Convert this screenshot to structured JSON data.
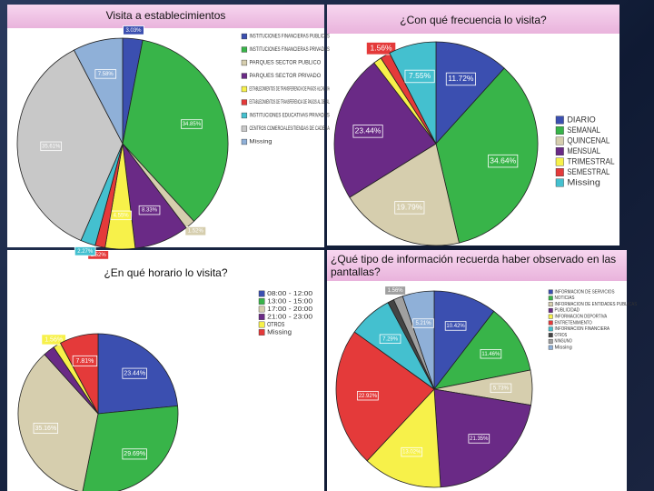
{
  "chart_data": [
    {
      "type": "pie",
      "title": "Visita a establecimientos",
      "categories": [
        "INSTITUCIONES FINANCIERAS PUBLICAS",
        "INSTITUCIONES FINANCIERAS PRIVADAS",
        "PARQUES SECTOR PUBLICO",
        "PARQUES SECTOR PRIVADO",
        "ESTABLECIMIENTOS DE TRANSFERENCIA DE PAGOS ALCALDIA",
        "ESTABLECIMIENTOS DE TRANSFERENCIA DE PAGOS AL DETAL",
        "INSTITUCIONES EDUCATIVAS PRIVADAS",
        "CENTROS COMERCIALES/TIENDAS DE CADENA",
        "Missing"
      ],
      "values": [
        3.03,
        34.85,
        1.52,
        8.33,
        4.55,
        1.52,
        2.27,
        35.61,
        7.58
      ],
      "value_labels": [
        "3.03%",
        "34.85%",
        "1.52%",
        "8.33%",
        "4.55%",
        "1.52%",
        "2.27%",
        "35.61%",
        "7.58%"
      ],
      "colors": [
        "#3b4fb0",
        "#38b449",
        "#d6ceae",
        "#6a2a86",
        "#f7f14a",
        "#e43a3a",
        "#44c0cf",
        "#c8c8c8",
        "#8fb0d8"
      ]
    },
    {
      "type": "pie",
      "title": "¿Con qué frecuencia lo visita?",
      "categories": [
        "DIARIO",
        "SEMANAL",
        "QUINCENAL",
        "MENSUAL",
        "TRIMESTRAL",
        "SEMESTRAL",
        "Missing"
      ],
      "values": [
        11.72,
        34.64,
        19.79,
        23.44,
        1.3,
        1.56,
        7.55
      ],
      "value_labels": [
        "11.72%",
        "34.64%",
        "19.79%",
        "23.44%",
        null,
        "1.56%",
        "7.55%"
      ],
      "colors": [
        "#3b4fb0",
        "#38b449",
        "#d6ceae",
        "#6a2a86",
        "#f7f14a",
        "#e43a3a",
        "#44c0cf"
      ]
    },
    {
      "type": "pie",
      "title": "¿En qué horario lo visita?",
      "categories": [
        "08:00 - 12:00",
        "13:00 - 15:00",
        "17:00 - 20:00",
        "21:00 - 23:00",
        "OTROS",
        "Missing"
      ],
      "values": [
        23.44,
        29.69,
        35.16,
        2.34,
        1.56,
        7.81
      ],
      "value_labels": [
        "23.44%",
        "29.69%",
        "35.16%",
        null,
        "1.56%",
        "7.81%"
      ],
      "colors": [
        "#3b4fb0",
        "#38b449",
        "#d6ceae",
        "#6a2a86",
        "#f7f14a",
        "#e43a3a"
      ]
    },
    {
      "type": "pie",
      "title": "¿Qué tipo de información recuerda haber observado en las pantallas?",
      "categories": [
        "INFORMACION DE SERVICIOS",
        "NOTICIAS",
        "INFORMACION DE ENTIDADES PUBLICAS",
        "PUBLICIDAD",
        "INFORMACION DEPORTIVA",
        "ENTRETENIMIENTO",
        "INFORMACION FINANCIERA",
        "OTROS",
        "NINGUNO",
        "Missing"
      ],
      "values": [
        10.42,
        11.46,
        5.73,
        21.35,
        13.02,
        22.92,
        7.29,
        1.04,
        1.56,
        5.21
      ],
      "value_labels": [
        "10.42%",
        "11.46%",
        "5.73%",
        "21.35%",
        "13.02%",
        "22.92%",
        "7.29%",
        null,
        "1.56%",
        "5.21%"
      ],
      "colors": [
        "#3b4fb0",
        "#38b449",
        "#d6ceae",
        "#6a2a86",
        "#f7f14a",
        "#e43a3a",
        "#44c0cf",
        "#444444",
        "#a0a0a0",
        "#8fb0d8"
      ]
    }
  ]
}
